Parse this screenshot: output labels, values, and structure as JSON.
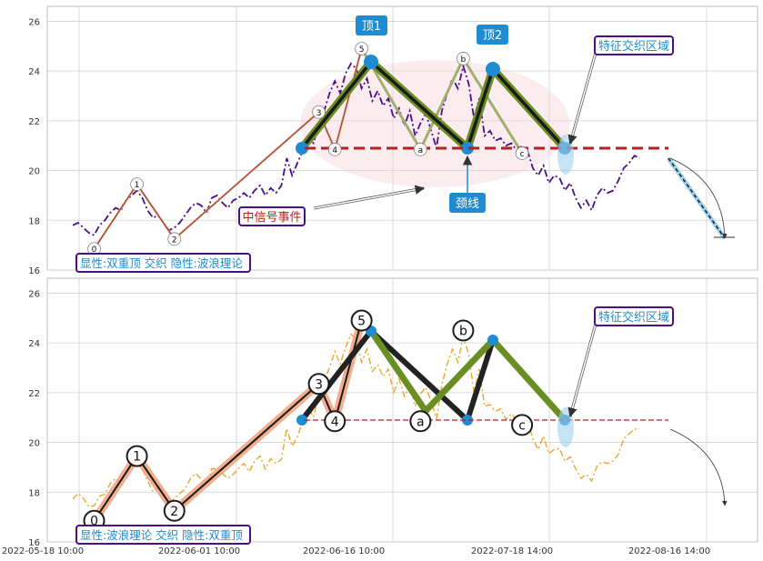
{
  "chart_data": [
    {
      "type": "line",
      "panel": "top",
      "ylim": [
        16,
        26.6
      ],
      "yticks": [
        16,
        18,
        20,
        22,
        24,
        26
      ],
      "xticks": [
        "2022-05-18 10:00",
        "2022-06-01 10:00",
        "2022-06-16 10:00",
        "2022-07-18 14:00",
        "2022-08-16 14:00"
      ],
      "grid": true,
      "price_color": "#4b0f8a",
      "price": [
        17.8,
        17.9,
        17.7,
        17.5,
        17.4,
        17.8,
        18.0,
        18.3,
        18.5,
        18.4,
        18.8,
        19.0,
        19.2,
        18.9,
        18.4,
        18.1,
        18.2,
        17.9,
        17.6,
        17.7,
        17.9,
        18.2,
        18.5,
        18.7,
        18.6,
        18.3,
        18.9,
        19.0,
        18.7,
        18.5,
        18.8,
        18.9,
        19.1,
        18.9,
        19.2,
        19.4,
        19.0,
        19.3,
        19.1,
        19.4,
        20.5,
        19.8,
        20.3,
        20.8,
        21.3,
        21.1,
        21.9,
        22.4,
        23.1,
        23.6,
        23.1,
        23.9,
        24.3,
        24.1,
        23.3,
        23.7,
        22.8,
        23.2,
        22.6,
        22.9,
        22.1,
        22.5,
        21.8,
        22.4,
        21.4,
        21.9,
        22.3,
        21.6,
        20.9,
        22.4,
        23.1,
        23.7,
        23.3,
        24.2,
        23.5,
        22.1,
        22.9,
        21.4,
        21.6,
        21.2,
        21.3,
        21.0,
        21.1,
        20.8,
        21.0,
        20.8,
        20.1,
        19.8,
        20.2,
        19.5,
        19.8,
        19.7,
        19.2,
        19.5,
        18.9,
        18.5,
        18.8,
        18.4,
        19.0,
        19.3,
        19.1,
        19.2,
        19.6,
        20.1,
        20.3,
        20.6,
        20.5
      ],
      "markers": [
        {
          "label": "0",
          "x": 4,
          "y": 16.85
        },
        {
          "label": "1",
          "x": 12,
          "y": 19.45
        },
        {
          "label": "2",
          "x": 19,
          "y": 17.25
        },
        {
          "label": "3",
          "x": 46,
          "y": 22.35
        },
        {
          "label": "4",
          "x": 49,
          "y": 20.85
        },
        {
          "label": "5",
          "x": 54,
          "y": 24.9
        },
        {
          "label": "a",
          "x": 65,
          "y": 20.85
        },
        {
          "label": "b",
          "x": 73,
          "y": 24.5
        },
        {
          "label": "c",
          "x": 84,
          "y": 20.7
        }
      ],
      "neckline_y": 20.85,
      "annotations": {
        "top1": "顶1",
        "top2": "顶2",
        "neckline": "颈线",
        "feature_zone": "特征交织区域",
        "mid_signal": "中信号事件",
        "legend": "显性:双重顶 交织 隐性:波浪理论"
      }
    },
    {
      "type": "line",
      "panel": "bottom",
      "ylim": [
        16,
        26.6
      ],
      "yticks": [
        16,
        18,
        20,
        22,
        24,
        26
      ],
      "grid": true,
      "price_color": "#e8a62e",
      "markers": [
        {
          "label": "0",
          "x": 4,
          "y": 16.85
        },
        {
          "label": "1",
          "x": 12,
          "y": 19.45
        },
        {
          "label": "2",
          "x": 19,
          "y": 17.25
        },
        {
          "label": "3",
          "x": 46,
          "y": 22.35
        },
        {
          "label": "4",
          "x": 49,
          "y": 20.85
        },
        {
          "label": "5",
          "x": 54,
          "y": 24.9
        },
        {
          "label": "a",
          "x": 65,
          "y": 20.85
        },
        {
          "label": "b",
          "x": 73,
          "y": 24.5
        },
        {
          "label": "c",
          "x": 84,
          "y": 20.7
        }
      ],
      "neckline_y": 20.85,
      "annotations": {
        "feature_zone": "特征交织区域",
        "legend": "显性:波浪理论 交织 隐性:双重顶"
      }
    }
  ],
  "colors": {
    "blue_badge": "#1f8bd0",
    "frame": "#4b0f8a",
    "neck_red": "#b22222",
    "olive": "#6b8e23",
    "salmon": "#f0a07a",
    "grid": "#d0d0d0",
    "tick_text": "#333333"
  }
}
